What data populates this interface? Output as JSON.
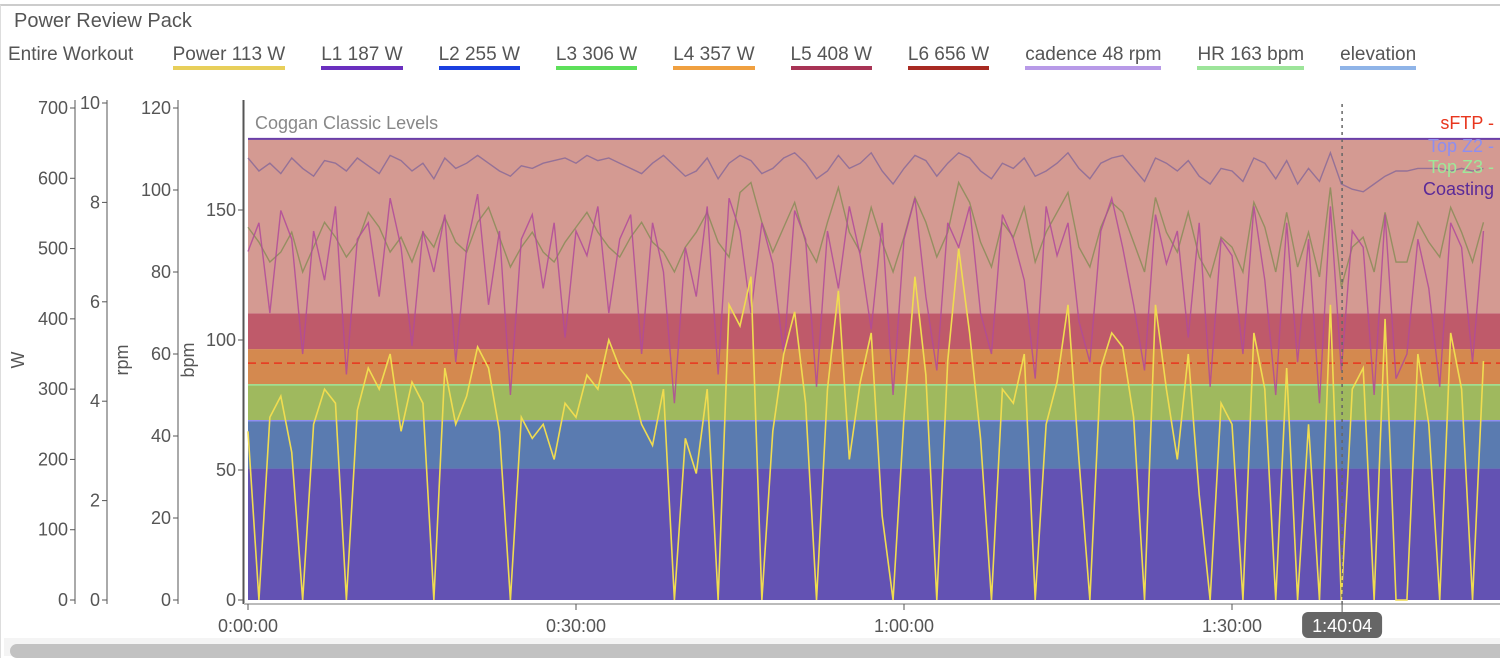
{
  "title": "Power Review Pack",
  "range_label": "Entire Workout",
  "legend": [
    {
      "label": "Power  113 W",
      "color": "#e8cf5a"
    },
    {
      "label": "L1  187 W",
      "color": "#6a2fbf"
    },
    {
      "label": "L2  255 W",
      "color": "#1a3fe0"
    },
    {
      "label": "L3  306 W",
      "color": "#5de05a"
    },
    {
      "label": "L4  357 W",
      "color": "#f0a040"
    },
    {
      "label": "L5  408 W",
      "color": "#a83355"
    },
    {
      "label": "L6  656 W",
      "color": "#a82a22"
    },
    {
      "label": "cadence  48 rpm",
      "color": "#b89ae8"
    },
    {
      "label": "HR  163 bpm",
      "color": "#9de59a"
    },
    {
      "label": "elevation",
      "color": "#8fb4e8"
    }
  ],
  "chart_data": {
    "type": "line",
    "title": "Coggan Classic Levels",
    "x_unit": "minutes",
    "x_ticks": [
      "0:00:00",
      "0:30:00",
      "1:00:00",
      "1:30:00"
    ],
    "x_tick_values": [
      0,
      30,
      60,
      90
    ],
    "xlim": [
      0,
      113
    ],
    "cursor_label": "1:40:04",
    "cursor_value": 100.07,
    "axes": [
      {
        "label": "W",
        "ylim": [
          0,
          700
        ],
        "ticks": [
          0,
          100,
          200,
          300,
          400,
          500,
          600,
          700
        ]
      },
      {
        "label": "",
        "ylim": [
          0,
          10
        ],
        "ticks": [
          0,
          2,
          4,
          6,
          8,
          10
        ]
      },
      {
        "label": "rpm",
        "ylim": [
          0,
          120
        ],
        "ticks": [
          0,
          20,
          40,
          60,
          80,
          100,
          120
        ]
      },
      {
        "label": "bpm",
        "ylim": [
          0,
          190
        ],
        "ticks": [
          0,
          50,
          100,
          150
        ]
      }
    ],
    "zones": [
      {
        "name": "L1",
        "from": 0,
        "to": 187,
        "color": "#6352b3"
      },
      {
        "name": "L2",
        "from": 187,
        "to": 255,
        "color": "#5a7bb0"
      },
      {
        "name": "L3",
        "from": 255,
        "to": 306,
        "color": "#9fb95e"
      },
      {
        "name": "L4",
        "from": 306,
        "to": 357,
        "color": "#d4894f"
      },
      {
        "name": "L5",
        "from": 357,
        "to": 408,
        "color": "#bf5a6a"
      },
      {
        "name": "L6",
        "from": 408,
        "to": 656,
        "color": "#d49a92"
      }
    ],
    "reference_lines": [
      {
        "label": "sFTP -",
        "value": 337,
        "color": "#e8361e",
        "dashed": true
      },
      {
        "label": "Top Z2 -",
        "value": 255,
        "color": "#8e8ef0",
        "dashed": false
      },
      {
        "label": "Top Z3 -",
        "value": 306,
        "color": "#9ee89a",
        "dashed": false
      },
      {
        "label": "Coasting",
        "value": null,
        "color": "#5a2a98",
        "dashed": false
      }
    ],
    "series": [
      {
        "name": "Power",
        "axis": 0,
        "color": "#f0dc50",
        "values": [
          240,
          0,
          260,
          290,
          210,
          0,
          250,
          300,
          280,
          0,
          270,
          330,
          300,
          350,
          240,
          310,
          280,
          0,
          330,
          250,
          290,
          360,
          330,
          240,
          0,
          260,
          230,
          250,
          200,
          280,
          260,
          320,
          300,
          370,
          330,
          310,
          250,
          220,
          300,
          0,
          230,
          180,
          300,
          0,
          420,
          390,
          460,
          0,
          240,
          350,
          410,
          280,
          0,
          300,
          440,
          200,
          310,
          380,
          120,
          0,
          260,
          460,
          320,
          0,
          340,
          500,
          380,
          230,
          0,
          300,
          280,
          350,
          0,
          250,
          310,
          420,
          200,
          0,
          330,
          380,
          360,
          260,
          0,
          420,
          300,
          200,
          350,
          150,
          0,
          280,
          250,
          0,
          380,
          300,
          0,
          330,
          0,
          250,
          0,
          420,
          0,
          300,
          330,
          0,
          400,
          0,
          0,
          350,
          250,
          0,
          380,
          300,
          0,
          340
        ]
      },
      {
        "name": "cadence",
        "axis": 2,
        "color": "#b04a9a",
        "values": [
          85,
          92,
          70,
          95,
          88,
          60,
          90,
          78,
          96,
          55,
          88,
          92,
          74,
          98,
          86,
          62,
          90,
          80,
          94,
          58,
          86,
          99,
          72,
          90,
          50,
          88,
          94,
          76,
          92,
          64,
          90,
          84,
          96,
          70,
          88,
          94,
          60,
          92,
          80,
          48,
          86,
          74,
          96,
          55,
          98,
          90,
          70,
          92,
          82,
          60,
          95,
          88,
          52,
          90,
          76,
          96,
          84,
          66,
          92,
          50,
          88,
          98,
          74,
          56,
          92,
          86,
          96,
          70,
          60,
          94,
          88,
          78,
          54,
          96,
          84,
          92,
          68,
          58,
          90,
          98,
          86,
          72,
          56,
          94,
          82,
          90,
          64,
          92,
          52,
          88,
          84,
          60,
          96,
          78,
          50,
          92,
          58,
          88,
          48,
          96,
          56,
          90,
          86,
          50,
          94,
          54,
          60,
          88,
          76,
          52,
          92,
          86,
          58,
          90
        ]
      },
      {
        "name": "HR",
        "axis": 3,
        "color": "#8a6a98",
        "values": [
          170,
          165,
          168,
          164,
          170,
          166,
          163,
          169,
          168,
          165,
          170,
          167,
          164,
          171,
          169,
          165,
          168,
          162,
          170,
          166,
          168,
          171,
          168,
          165,
          163,
          167,
          166,
          168,
          169,
          170,
          168,
          171,
          169,
          170,
          168,
          166,
          164,
          168,
          171,
          167,
          163,
          165,
          170,
          162,
          168,
          171,
          169,
          164,
          166,
          170,
          172,
          168,
          162,
          165,
          171,
          166,
          168,
          172,
          165,
          160,
          166,
          171,
          169,
          163,
          168,
          172,
          170,
          165,
          162,
          168,
          166,
          170,
          163,
          165,
          168,
          172,
          166,
          162,
          168,
          170,
          171,
          166,
          161,
          170,
          168,
          165,
          169,
          163,
          160,
          166,
          165,
          161,
          170,
          168,
          162,
          169,
          160,
          166,
          161,
          172,
          160,
          158,
          157,
          160,
          163,
          165,
          165,
          166,
          166,
          166,
          165,
          166,
          165,
          166
        ]
      },
      {
        "name": "elevation",
        "axis": 1,
        "color": "#8a8c58",
        "values": [
          7.5,
          7.2,
          6.8,
          7.0,
          7.4,
          6.6,
          7.1,
          7.6,
          7.3,
          6.9,
          7.2,
          7.8,
          7.5,
          7.0,
          7.3,
          6.8,
          7.4,
          7.1,
          7.7,
          7.2,
          7.0,
          7.6,
          7.9,
          7.3,
          6.7,
          7.1,
          7.4,
          7.0,
          6.8,
          7.2,
          7.5,
          7.8,
          7.4,
          7.1,
          6.9,
          7.3,
          7.6,
          7.2,
          7.0,
          6.6,
          7.1,
          7.4,
          7.8,
          7.2,
          6.9,
          8.2,
          8.4,
          7.6,
          7.0,
          7.5,
          8.0,
          7.2,
          6.8,
          7.6,
          8.3,
          7.4,
          7.0,
          7.9,
          7.2,
          6.6,
          7.3,
          8.1,
          7.6,
          6.9,
          7.4,
          8.4,
          8.0,
          7.2,
          6.7,
          7.6,
          7.3,
          7.9,
          6.8,
          7.4,
          7.8,
          8.2,
          7.1,
          6.7,
          7.5,
          8.0,
          7.8,
          7.2,
          6.6,
          8.1,
          7.4,
          7.0,
          7.8,
          6.9,
          6.5,
          7.3,
          7.1,
          6.6,
          8.0,
          7.5,
          6.6,
          7.8,
          6.7,
          7.4,
          6.5,
          8.3,
          6.3,
          7.1,
          7.3,
          6.6,
          7.8,
          6.8,
          6.8,
          7.6,
          7.2,
          6.9,
          7.9,
          7.4,
          6.8,
          7.6
        ]
      }
    ]
  }
}
